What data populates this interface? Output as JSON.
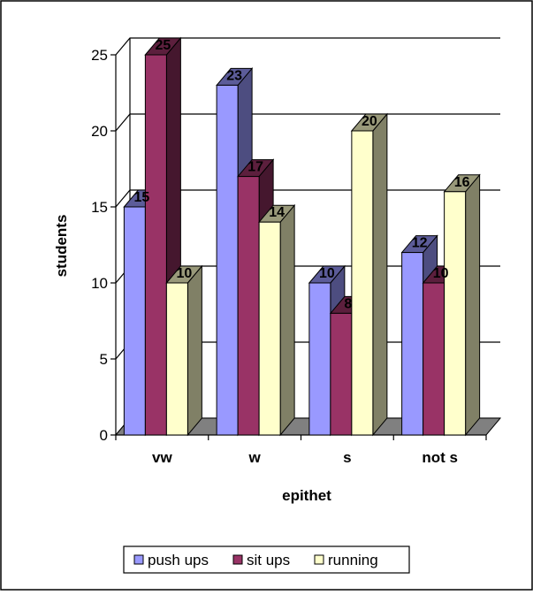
{
  "chart_data": {
    "type": "bar",
    "title": "",
    "xlabel": "epithet",
    "ylabel": "students",
    "categories": [
      "vw",
      "w",
      "s",
      "not s"
    ],
    "ylim": [
      0,
      25
    ],
    "yticks": [
      0,
      5,
      10,
      15,
      20,
      25
    ],
    "grid": true,
    "legend_position": "bottom",
    "series": [
      {
        "name": "push ups",
        "values": [
          15,
          23,
          10,
          12
        ],
        "color": "#9999FF"
      },
      {
        "name": "sit ups",
        "values": [
          25,
          17,
          8,
          10
        ],
        "color": "#993366"
      },
      {
        "name": "running",
        "values": [
          10,
          14,
          20,
          16
        ],
        "color": "#FFFFCC"
      }
    ],
    "data_labels": true
  }
}
